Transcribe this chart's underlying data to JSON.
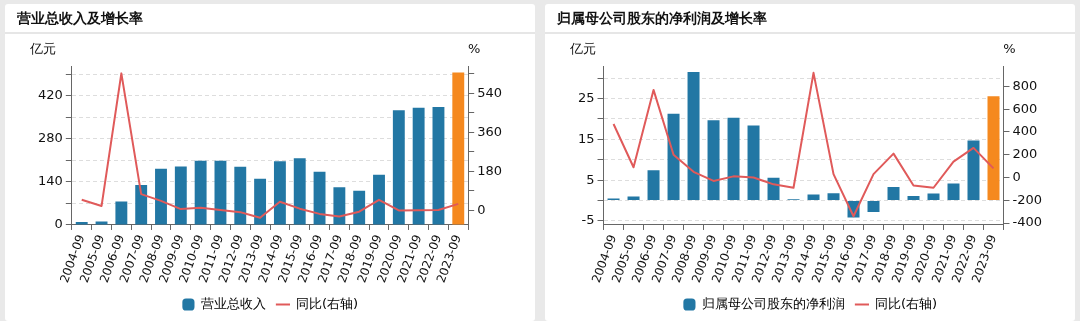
{
  "chart_data": [
    {
      "type": "bar",
      "title": "营业总收入及增长率",
      "ylabel": "亿元",
      "y2label": "%",
      "categories": [
        "2004-09",
        "2005-09",
        "2006-09",
        "2007-09",
        "2008-09",
        "2009-09",
        "2010-09",
        "2011-09",
        "2012-09",
        "2013-09",
        "2014-09",
        "2015-09",
        "2016-09",
        "2017-09",
        "2018-09",
        "2019-09",
        "2020-09",
        "2021-09",
        "2022-09",
        "2023-09"
      ],
      "series": [
        {
          "name": "营业总收入",
          "color": "#2277a4",
          "colors": [
            "#2277a4",
            "#2277a4",
            "#2277a4",
            "#2277a4",
            "#2277a4",
            "#2277a4",
            "#2277a4",
            "#2277a4",
            "#2277a4",
            "#2277a4",
            "#2277a4",
            "#2277a4",
            "#2277a4",
            "#2277a4",
            "#2277a4",
            "#2277a4",
            "#2277a4",
            "#2277a4",
            "#2277a4",
            "#f5891f"
          ],
          "values": [
            10,
            11,
            76,
            130,
            183,
            190,
            209,
            209,
            189,
            150,
            207,
            217,
            173,
            123,
            111,
            163,
            373,
            381,
            384,
            496
          ]
        },
        {
          "name": "同比(右轴)",
          "type": "line",
          "axis": "y2",
          "color": "#e05a5a",
          "values": [
            49,
            20,
            631,
            75,
            44,
            6,
            12,
            2,
            -8,
            -34,
            40,
            8,
            -16,
            -28,
            -6,
            49,
            0,
            1,
            2,
            30
          ]
        }
      ],
      "ylim": [
        0,
        517
      ],
      "yticks": [
        0,
        {
          "value": 70,
          "label": null
        },
        140,
        {
          "value": 210,
          "label": null
        },
        280,
        {
          "value": 350,
          "label": null
        },
        420,
        {
          "value": 490,
          "label": null
        }
      ],
      "y2lim": [
        -67,
        665
      ],
      "y2ticks": [
        0,
        {
          "value": 90,
          "label": null
        },
        180,
        {
          "value": 270,
          "label": null
        },
        360,
        {
          "value": 450,
          "label": null
        },
        540,
        {
          "value": 630,
          "label": null
        }
      ],
      "grid": "y",
      "legend": "bottom",
      "marker": "none",
      "line_style": "solid"
    },
    {
      "type": "bar",
      "title": "归属母公司股东的净利润及增长率",
      "ylabel": "亿元",
      "y2label": "%",
      "categories": [
        "2004-09",
        "2005-09",
        "2006-09",
        "2007-09",
        "2008-09",
        "2009-09",
        "2010-09",
        "2011-09",
        "2012-09",
        "2013-09",
        "2014-09",
        "2015-09",
        "2016-09",
        "2017-09",
        "2018-09",
        "2019-09",
        "2020-09",
        "2021-09",
        "2022-09",
        "2023-09"
      ],
      "series": [
        {
          "name": "归属母公司股东的净利润",
          "color": "#2277a4",
          "colors": [
            "#2277a4",
            "#2277a4",
            "#2277a4",
            "#2277a4",
            "#2277a4",
            "#2277a4",
            "#2277a4",
            "#2277a4",
            "#2277a4",
            "#2277a4",
            "#2277a4",
            "#2277a4",
            "#2277a4",
            "#2277a4",
            "#2277a4",
            "#2277a4",
            "#2277a4",
            "#2277a4",
            "#2277a4",
            "#f5891f"
          ],
          "values": [
            0.5,
            1.0,
            7.4,
            21.3,
            31.5,
            19.7,
            20.3,
            18.4,
            5.6,
            0.3,
            1.5,
            1.8,
            -4.2,
            -2.8,
            3.3,
            1.1,
            1.7,
            4.2,
            14.7,
            25.6
          ]
        },
        {
          "name": "同比(右轴)",
          "type": "line",
          "axis": "y2",
          "color": "#e05a5a",
          "values": [
            470,
            90,
            770,
            200,
            50,
            -30,
            10,
            0,
            -60,
            -90,
            920,
            30,
            -340,
            30,
            210,
            -70,
            -90,
            140,
            260,
            80
          ]
        }
      ],
      "ylim": [
        -6,
        33
      ],
      "yticks": [
        -5,
        {
          "value": 0,
          "label": null
        },
        5,
        {
          "value": 10,
          "label": null
        },
        15,
        {
          "value": 20,
          "label": null
        },
        25,
        {
          "value": 30,
          "label": null
        }
      ],
      "y2lim": [
        -417,
        980
      ],
      "y2ticks": [
        -400,
        -200,
        0,
        200,
        400,
        600,
        800
      ],
      "grid": "y",
      "legend": "bottom",
      "marker": "none",
      "line_style": "solid"
    }
  ]
}
